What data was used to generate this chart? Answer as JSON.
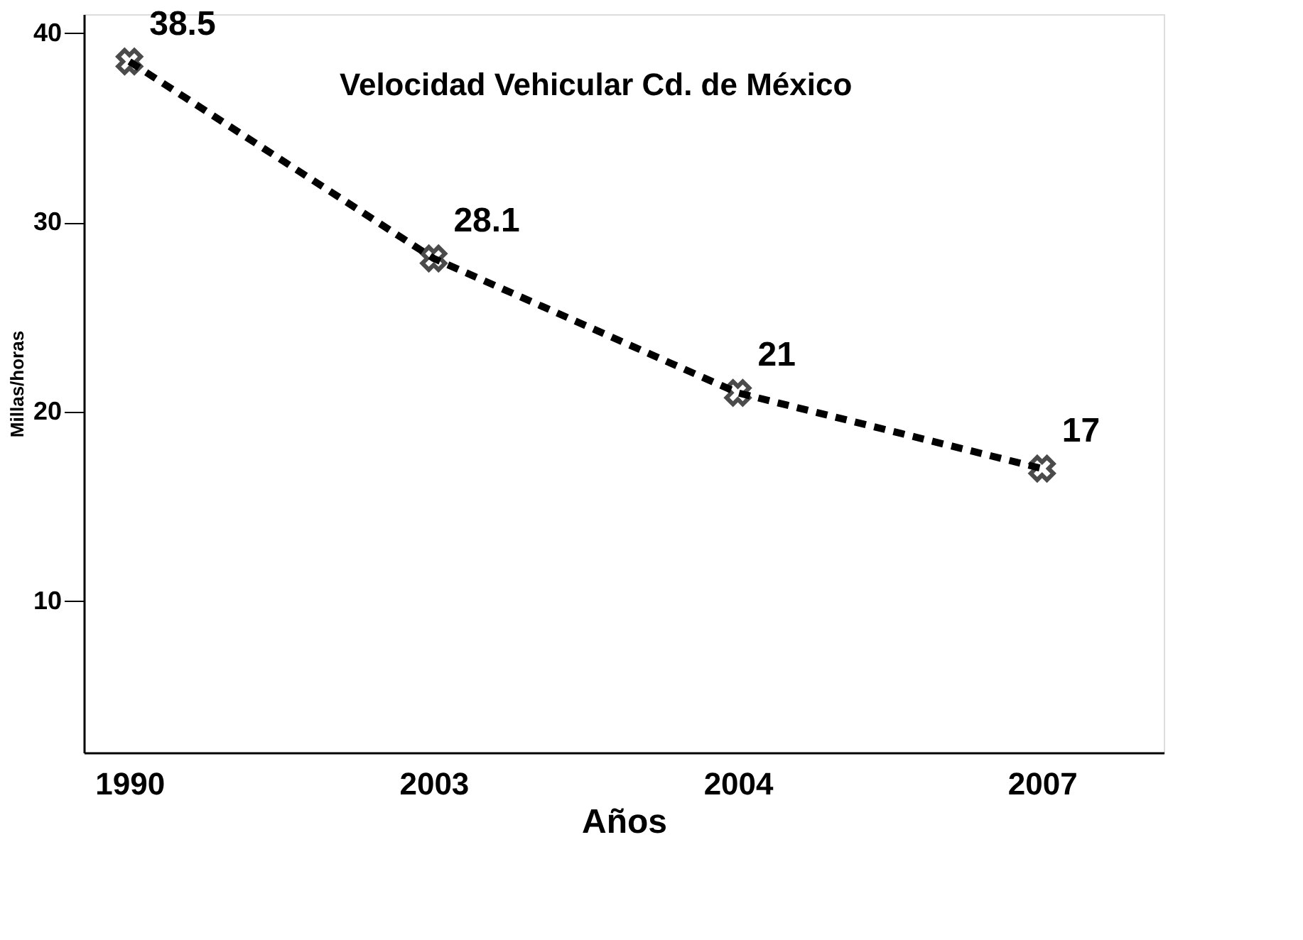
{
  "chart_data": {
    "type": "line",
    "title": "Velocidad Vehicular Cd. de México",
    "xlabel": "Años",
    "ylabel": "Millas/horas",
    "categories": [
      "1990",
      "2003",
      "2004",
      "2007"
    ],
    "series": [
      {
        "color": "#000000",
        "values": [
          38.5,
          28.1,
          21,
          17
        ]
      }
    ],
    "ylim": [
      2,
      41
    ],
    "yticks": [
      10,
      20,
      30,
      40
    ],
    "grid": false,
    "legend": false,
    "marker": "cross",
    "line_style": "dashed",
    "data_labels": true
  }
}
